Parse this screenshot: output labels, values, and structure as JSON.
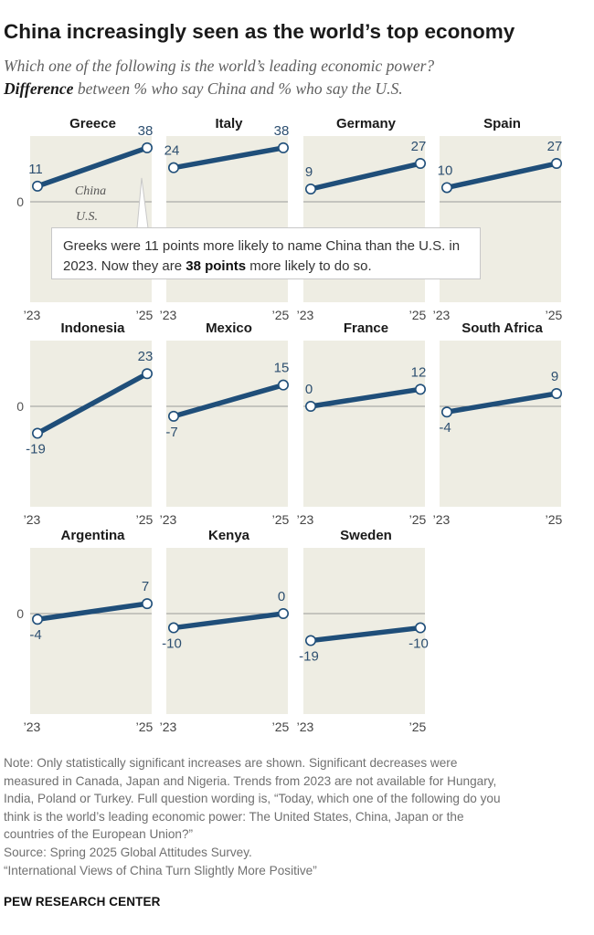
{
  "header": {
    "title": "China increasingly seen as the world’s top economy",
    "subtitle_question": "Which one of the following is the world’s leading economic power?",
    "subtitle_emphasis": "Difference",
    "subtitle_rest": " between % who say China and % who say the U.S."
  },
  "annotation": {
    "text_before": "Greeks were 11 points more likely to name China than the U.S. in 2023. Now they are ",
    "text_bold": "38 points",
    "text_after": " more likely to do so."
  },
  "colors": {
    "panel_bg": "#EEEDE3",
    "line": "#1F4E79",
    "zero_line": "#9a9a9a",
    "area_label": "#555555"
  },
  "chart_data": {
    "type": "line",
    "title": "China increasingly seen as the world’s top economy",
    "ylabel": "Difference between % who say China and % who say the U.S.",
    "x_labels": [
      "’23",
      "’25"
    ],
    "zero_label": "0",
    "area_labels": {
      "above": "China",
      "below": "U.S."
    },
    "series": [
      {
        "name": "Greece",
        "values": [
          11,
          38
        ]
      },
      {
        "name": "Italy",
        "values": [
          24,
          38
        ]
      },
      {
        "name": "Germany",
        "values": [
          9,
          27
        ]
      },
      {
        "name": "Spain",
        "values": [
          10,
          27
        ]
      },
      {
        "name": "Indonesia",
        "values": [
          -19,
          23
        ]
      },
      {
        "name": "Mexico",
        "values": [
          -7,
          15
        ]
      },
      {
        "name": "France",
        "values": [
          0,
          12
        ]
      },
      {
        "name": "South Africa",
        "values": [
          -4,
          9
        ]
      },
      {
        "name": "Argentina",
        "values": [
          -4,
          7
        ]
      },
      {
        "name": "Kenya",
        "values": [
          -10,
          0
        ]
      },
      {
        "name": "Sweden",
        "values": [
          -19,
          -10
        ]
      }
    ]
  },
  "notes": [
    "Note: Only statistically significant increases are shown. Significant decreases were",
    "measured in Canada, Japan and Nigeria. Trends from 2023 are not available for Hungary,",
    "India, Poland or Turkey. Full question wording is, “Today, which one of the following do you",
    "think is the world’s leading economic power: The United States, China, Japan or the",
    "countries of the European Union?”",
    "Source: Spring 2025 Global Attitudes Survey.",
    "“International Views of China Turn Slightly More Positive”"
  ],
  "source_org": "PEW RESEARCH CENTER"
}
